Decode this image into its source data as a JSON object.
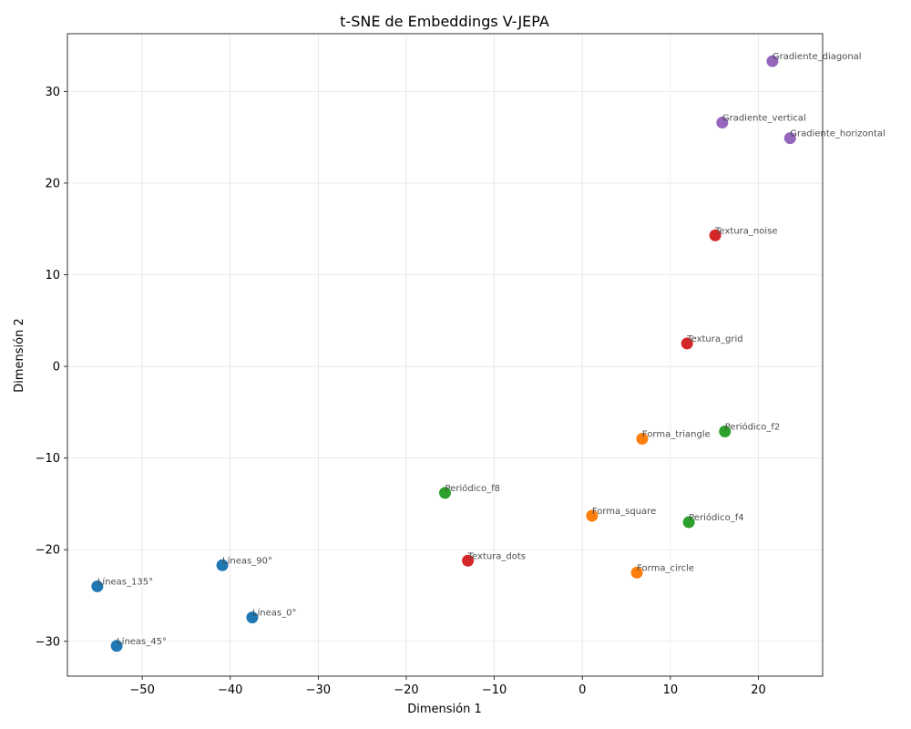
{
  "chart_data": {
    "type": "scatter",
    "title": "t-SNE de Embeddings V-JEPA",
    "xlabel": "Dimensión 1",
    "ylabel": "Dimensión 2",
    "xlim": [
      -58.5,
      27.3
    ],
    "ylim": [
      -33.8,
      36.3
    ],
    "xticks": [
      -50,
      -40,
      -30,
      -20,
      -10,
      0,
      10,
      20
    ],
    "yticks": [
      -30,
      -20,
      -10,
      0,
      10,
      20,
      30
    ],
    "xtick_labels": [
      "−50",
      "−40",
      "−30",
      "−20",
      "−10",
      "0",
      "10",
      "20"
    ],
    "ytick_labels": [
      "−30",
      "−20",
      "−10",
      "0",
      "10",
      "20",
      "30"
    ],
    "grid": true,
    "series": [
      {
        "color": "#1f77b4",
        "points": [
          {
            "label": "Líneas_0°",
            "x": -37.5,
            "y": -27.4
          },
          {
            "label": "Líneas_45°",
            "x": -52.9,
            "y": -30.5
          },
          {
            "label": "Líneas_90°",
            "x": -40.9,
            "y": -21.7
          },
          {
            "label": "Líneas_135°",
            "x": -55.1,
            "y": -24.0
          }
        ]
      },
      {
        "color": "#ff7f0e",
        "points": [
          {
            "label": "Forma_circle",
            "x": 6.2,
            "y": -22.5
          },
          {
            "label": "Forma_square",
            "x": 1.1,
            "y": -16.3
          },
          {
            "label": "Forma_triangle",
            "x": 6.8,
            "y": -7.9
          }
        ]
      },
      {
        "color": "#2ca02c",
        "points": [
          {
            "label": "Periódico_f2",
            "x": 16.2,
            "y": -7.1
          },
          {
            "label": "Periódico_f4",
            "x": 12.1,
            "y": -17.0
          },
          {
            "label": "Periódico_f8",
            "x": -15.6,
            "y": -13.8
          }
        ]
      },
      {
        "color": "#d62728",
        "points": [
          {
            "label": "Textura_dots",
            "x": -13.0,
            "y": -21.2
          },
          {
            "label": "Textura_grid",
            "x": 11.9,
            "y": 2.5
          },
          {
            "label": "Textura_noise",
            "x": 15.1,
            "y": 14.3
          }
        ]
      },
      {
        "color": "#9467bd",
        "points": [
          {
            "label": "Gradiente_diagonal",
            "x": 21.6,
            "y": 33.3
          },
          {
            "label": "Gradiente_vertical",
            "x": 15.9,
            "y": 26.6
          },
          {
            "label": "Gradiente_horizontal",
            "x": 23.6,
            "y": 24.9
          }
        ]
      }
    ]
  }
}
